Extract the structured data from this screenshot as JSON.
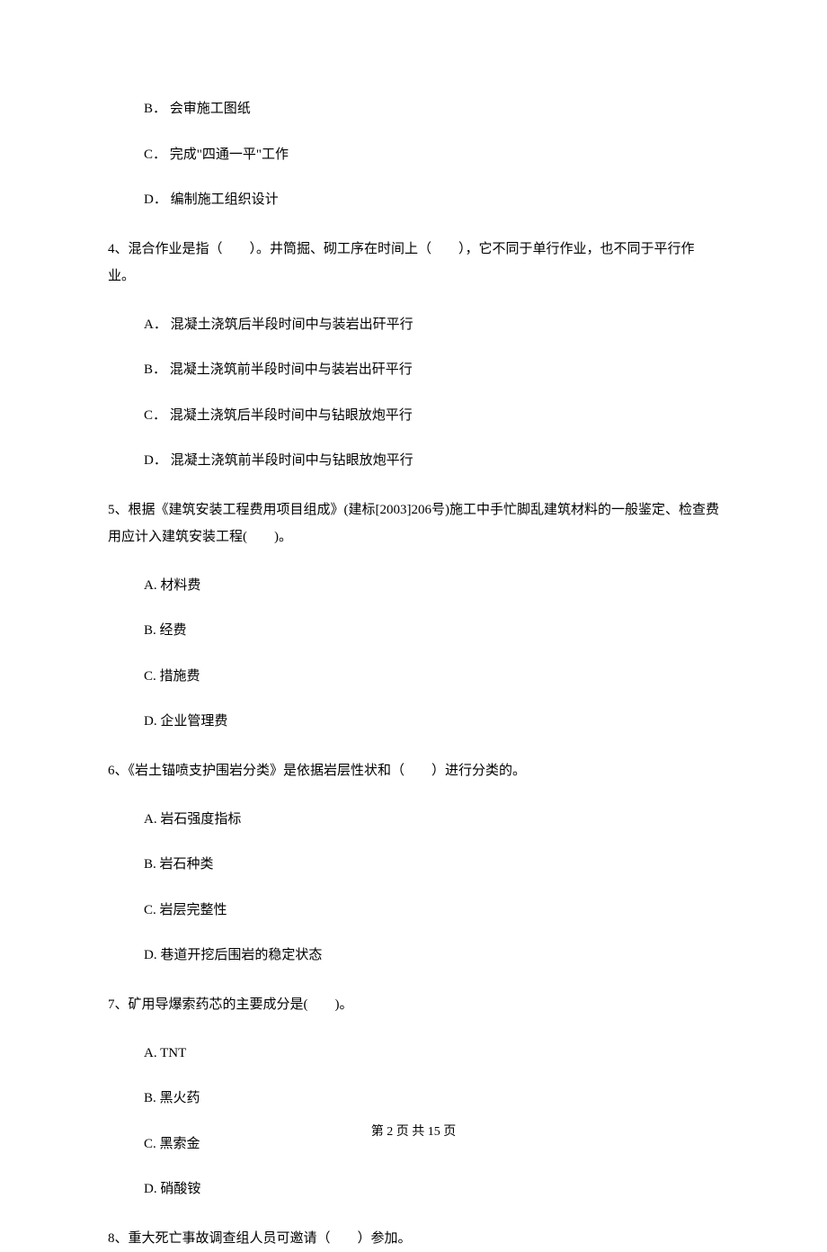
{
  "prevQuestion": {
    "options": [
      {
        "letter": "B．",
        "text": "会审施工图纸"
      },
      {
        "letter": "C．",
        "text": "完成\"四通一平\"工作"
      },
      {
        "letter": "D．",
        "text": "编制施工组织设计"
      }
    ]
  },
  "q4": {
    "text": "4、混合作业是指（　　）。井筒掘、砌工序在时间上（　　），它不同于单行作业，也不同于平行作业。",
    "options": [
      {
        "letter": "A．",
        "text": "混凝土浇筑后半段时间中与装岩出矸平行"
      },
      {
        "letter": "B．",
        "text": "混凝土浇筑前半段时间中与装岩出矸平行"
      },
      {
        "letter": "C．",
        "text": "混凝土浇筑后半段时间中与钻眼放炮平行"
      },
      {
        "letter": "D．",
        "text": "混凝土浇筑前半段时间中与钻眼放炮平行"
      }
    ]
  },
  "q5": {
    "text": "5、根据《建筑安装工程费用项目组成》(建标[2003]206号)施工中手忙脚乱建筑材料的一般鉴定、检查费用应计入建筑安装工程(　　)。",
    "options": [
      {
        "letter": "A.",
        "text": "材料费"
      },
      {
        "letter": "B.",
        "text": "经费"
      },
      {
        "letter": "C.",
        "text": "措施费"
      },
      {
        "letter": "D.",
        "text": "企业管理费"
      }
    ]
  },
  "q6": {
    "text": "6、《岩土锚喷支护围岩分类》是依据岩层性状和（　　）进行分类的。",
    "options": [
      {
        "letter": "A.",
        "text": "岩石强度指标"
      },
      {
        "letter": "B.",
        "text": "岩石种类"
      },
      {
        "letter": "C.",
        "text": "岩层完整性"
      },
      {
        "letter": "D.",
        "text": "巷道开挖后围岩的稳定状态"
      }
    ]
  },
  "q7": {
    "text": "7、矿用导爆索药芯的主要成分是(　　)。",
    "options": [
      {
        "letter": "A.",
        "text": "TNT"
      },
      {
        "letter": "B.",
        "text": "黑火药"
      },
      {
        "letter": "C.",
        "text": "黑索金"
      },
      {
        "letter": "D.",
        "text": "硝酸铵"
      }
    ]
  },
  "q8": {
    "text": "8、重大死亡事故调查组人员可邀请（　　）参加。"
  },
  "footer": "第 2 页 共 15 页"
}
